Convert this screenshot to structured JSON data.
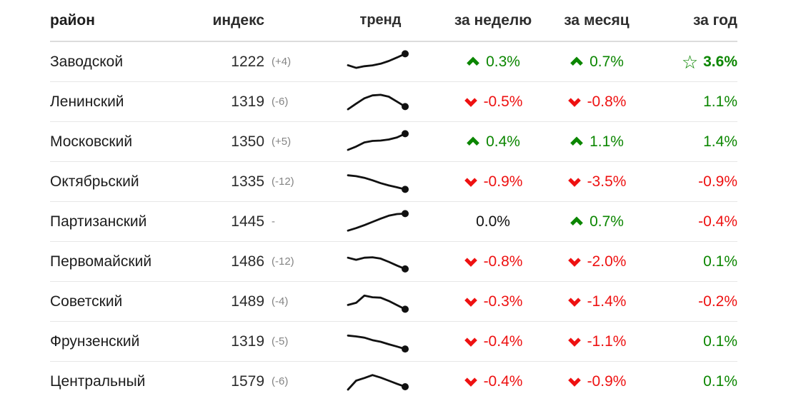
{
  "colors": {
    "green": "#0b8600",
    "red": "#ee1111",
    "spark_line": "#111111",
    "header_text": "#2e2e2e",
    "body_text": "#1c1c1c",
    "muted_text": "#848484",
    "divider": "#e7e7e7"
  },
  "chart_data": {
    "type": "table",
    "columns": [
      "район",
      "индекс",
      "тренд",
      "за неделю",
      "за месяц",
      "за год"
    ],
    "trend_note": "sparkline values are normalized 0-1 estimates read from the mini line charts, last point marked with a dot",
    "rows": [
      {
        "district": "Заводской",
        "index": "1222",
        "index_change": "(+4)",
        "trend_spark": [
          0.35,
          0.22,
          0.3,
          0.34,
          0.42,
          0.55,
          0.72,
          0.9
        ],
        "week": {
          "icon": "up",
          "value": "0.3%",
          "tone": "pos"
        },
        "month": {
          "icon": "up",
          "value": "0.7%",
          "tone": "pos"
        },
        "year": {
          "icon": "star",
          "value": "3.6%",
          "tone": "pos",
          "bold": true
        }
      },
      {
        "district": "Ленинский",
        "index": "1319",
        "index_change": "(-6)",
        "trend_spark": [
          0.15,
          0.42,
          0.68,
          0.82,
          0.85,
          0.76,
          0.52,
          0.28
        ],
        "week": {
          "icon": "down",
          "value": "-0.5%",
          "tone": "neg"
        },
        "month": {
          "icon": "down",
          "value": "-0.8%",
          "tone": "neg"
        },
        "year": {
          "icon": "none",
          "value": "1.1%",
          "tone": "pos",
          "bold": false
        }
      },
      {
        "district": "Московский",
        "index": "1350",
        "index_change": "(+5)",
        "trend_spark": [
          0.12,
          0.28,
          0.48,
          0.55,
          0.57,
          0.62,
          0.72,
          0.9
        ],
        "week": {
          "icon": "up",
          "value": "0.4%",
          "tone": "pos"
        },
        "month": {
          "icon": "up",
          "value": "1.1%",
          "tone": "pos"
        },
        "year": {
          "icon": "none",
          "value": "1.4%",
          "tone": "pos",
          "bold": false
        }
      },
      {
        "district": "Октябрьский",
        "index": "1335",
        "index_change": "(-12)",
        "trend_spark": [
          0.82,
          0.78,
          0.7,
          0.58,
          0.44,
          0.33,
          0.24,
          0.14
        ],
        "week": {
          "icon": "down",
          "value": "-0.9%",
          "tone": "neg"
        },
        "month": {
          "icon": "down",
          "value": "-3.5%",
          "tone": "neg"
        },
        "year": {
          "icon": "none",
          "value": "-0.9%",
          "tone": "neg",
          "bold": false
        }
      },
      {
        "district": "Партизанский",
        "index": "1445",
        "index_change": "-",
        "trend_spark": [
          0.08,
          0.2,
          0.34,
          0.5,
          0.66,
          0.8,
          0.88,
          0.9
        ],
        "week": {
          "icon": "none",
          "value": "0.0%",
          "tone": "flat"
        },
        "month": {
          "icon": "up",
          "value": "0.7%",
          "tone": "pos"
        },
        "year": {
          "icon": "none",
          "value": "-0.4%",
          "tone": "neg",
          "bold": false
        }
      },
      {
        "district": "Первомайский",
        "index": "1486",
        "index_change": "(-12)",
        "trend_spark": [
          0.7,
          0.6,
          0.7,
          0.72,
          0.66,
          0.5,
          0.32,
          0.16
        ],
        "week": {
          "icon": "down",
          "value": "-0.8%",
          "tone": "neg"
        },
        "month": {
          "icon": "down",
          "value": "-2.0%",
          "tone": "neg"
        },
        "year": {
          "icon": "none",
          "value": "0.1%",
          "tone": "pos",
          "bold": false
        }
      },
      {
        "district": "Советский",
        "index": "1489",
        "index_change": "(-4)",
        "trend_spark": [
          0.35,
          0.45,
          0.8,
          0.72,
          0.7,
          0.54,
          0.34,
          0.14
        ],
        "week": {
          "icon": "down",
          "value": "-0.3%",
          "tone": "neg"
        },
        "month": {
          "icon": "down",
          "value": "-1.4%",
          "tone": "neg"
        },
        "year": {
          "icon": "none",
          "value": "-0.2%",
          "tone": "neg",
          "bold": false
        }
      },
      {
        "district": "Фрунзенский",
        "index": "1319",
        "index_change": "(-5)",
        "trend_spark": [
          0.8,
          0.76,
          0.7,
          0.58,
          0.5,
          0.38,
          0.27,
          0.15
        ],
        "week": {
          "icon": "down",
          "value": "-0.4%",
          "tone": "neg"
        },
        "month": {
          "icon": "down",
          "value": "-1.1%",
          "tone": "neg"
        },
        "year": {
          "icon": "none",
          "value": "0.1%",
          "tone": "pos",
          "bold": false
        }
      },
      {
        "district": "Центральный",
        "index": "1579",
        "index_change": "(-6)",
        "trend_spark": [
          0.12,
          0.55,
          0.68,
          0.82,
          0.7,
          0.55,
          0.4,
          0.26
        ],
        "week": {
          "icon": "down",
          "value": "-0.4%",
          "tone": "neg"
        },
        "month": {
          "icon": "down",
          "value": "-0.9%",
          "tone": "neg"
        },
        "year": {
          "icon": "none",
          "value": "0.1%",
          "tone": "pos",
          "bold": false
        }
      }
    ]
  }
}
